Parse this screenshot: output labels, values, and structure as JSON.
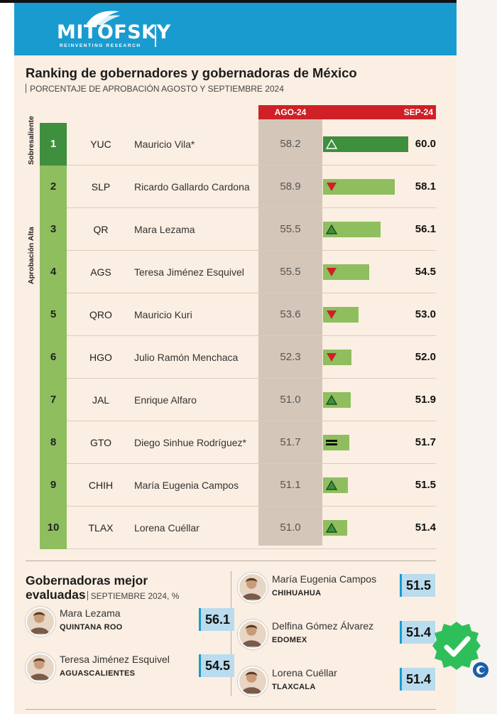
{
  "brand": {
    "name": "MITOFSKY",
    "tagline": "REINVENTING RESEARCH"
  },
  "title": "Ranking de gobernadores y gobernadoras de México",
  "subtitle": "PORCENTAJE DE APROBACIÓN AGOSTO Y SEPTIEMBRE 2024",
  "tiers": {
    "top": "Sobresaliente",
    "high": "Aprobación Alta"
  },
  "chart_data": {
    "type": "bar",
    "title": "Ranking de gobernadores y gobernadoras de México",
    "subtitle": "PORCENTAJE DE APROBACIÓN AGOSTO Y SEPTIEMBRE 2024",
    "columns": {
      "previous": "AGO-24",
      "current": "SEP-24"
    },
    "rows": [
      {
        "rank": "1",
        "state": "YUC",
        "name": "Mauricio Vila*",
        "ago": "58.2",
        "sep": "60.0",
        "trend": "up"
      },
      {
        "rank": "2",
        "state": "SLP",
        "name": "Ricardo Gallardo Cardona",
        "ago": "58.9",
        "sep": "58.1",
        "trend": "down"
      },
      {
        "rank": "3",
        "state": "QR",
        "name": "Mara Lezama",
        "ago": "55.5",
        "sep": "56.1",
        "trend": "up"
      },
      {
        "rank": "4",
        "state": "AGS",
        "name": "Teresa Jiménez Esquivel",
        "ago": "55.5",
        "sep": "54.5",
        "trend": "down"
      },
      {
        "rank": "5",
        "state": "QRO",
        "name": "Mauricio Kuri",
        "ago": "53.6",
        "sep": "53.0",
        "trend": "down"
      },
      {
        "rank": "6",
        "state": "HGO",
        "name": "Julio Ramón Menchaca",
        "ago": "52.3",
        "sep": "52.0",
        "trend": "down"
      },
      {
        "rank": "7",
        "state": "JAL",
        "name": "Enrique Alfaro",
        "ago": "51.0",
        "sep": "51.9",
        "trend": "up"
      },
      {
        "rank": "8",
        "state": "GTO",
        "name": "Diego Sinhue Rodríguez*",
        "ago": "51.7",
        "sep": "51.7",
        "trend": "equal"
      },
      {
        "rank": "9",
        "state": "CHIH",
        "name": "María Eugenia Campos",
        "ago": "51.1",
        "sep": "51.5",
        "trend": "up"
      },
      {
        "rank": "10",
        "state": "TLAX",
        "name": "Lorena Cuéllar",
        "ago": "51.0",
        "sep": "51.4",
        "trend": "up"
      }
    ],
    "colors": {
      "top_tier": "#3e8f3e",
      "high_tier": "#8fbe5e",
      "up": "#3e8f3e",
      "down": "#cf2027",
      "header": "#cf2027"
    }
  },
  "best": {
    "title_line1": "Gobernadoras mejor",
    "title_line2": "evaluadas",
    "period": "SEPTIEMBRE 2024, %",
    "items": [
      {
        "name": "Mara Lezama",
        "state": "QUINTANA ROO",
        "value": "56.1"
      },
      {
        "name": "Teresa Jiménez Esquivel",
        "state": "AGUASCALIENTES",
        "value": "54.5"
      },
      {
        "name": "María Eugenia Campos",
        "state": "CHIHUAHUA",
        "value": "51.5"
      },
      {
        "name": "Delfina Gómez Álvarez",
        "state": "EDOMEX",
        "value": "51.4"
      },
      {
        "name": "Lorena Cuéllar",
        "state": "TLAXCALA",
        "value": "51.4"
      }
    ]
  },
  "icons": {
    "avatar": "avatar-icon",
    "badge": "verified-check-icon"
  }
}
